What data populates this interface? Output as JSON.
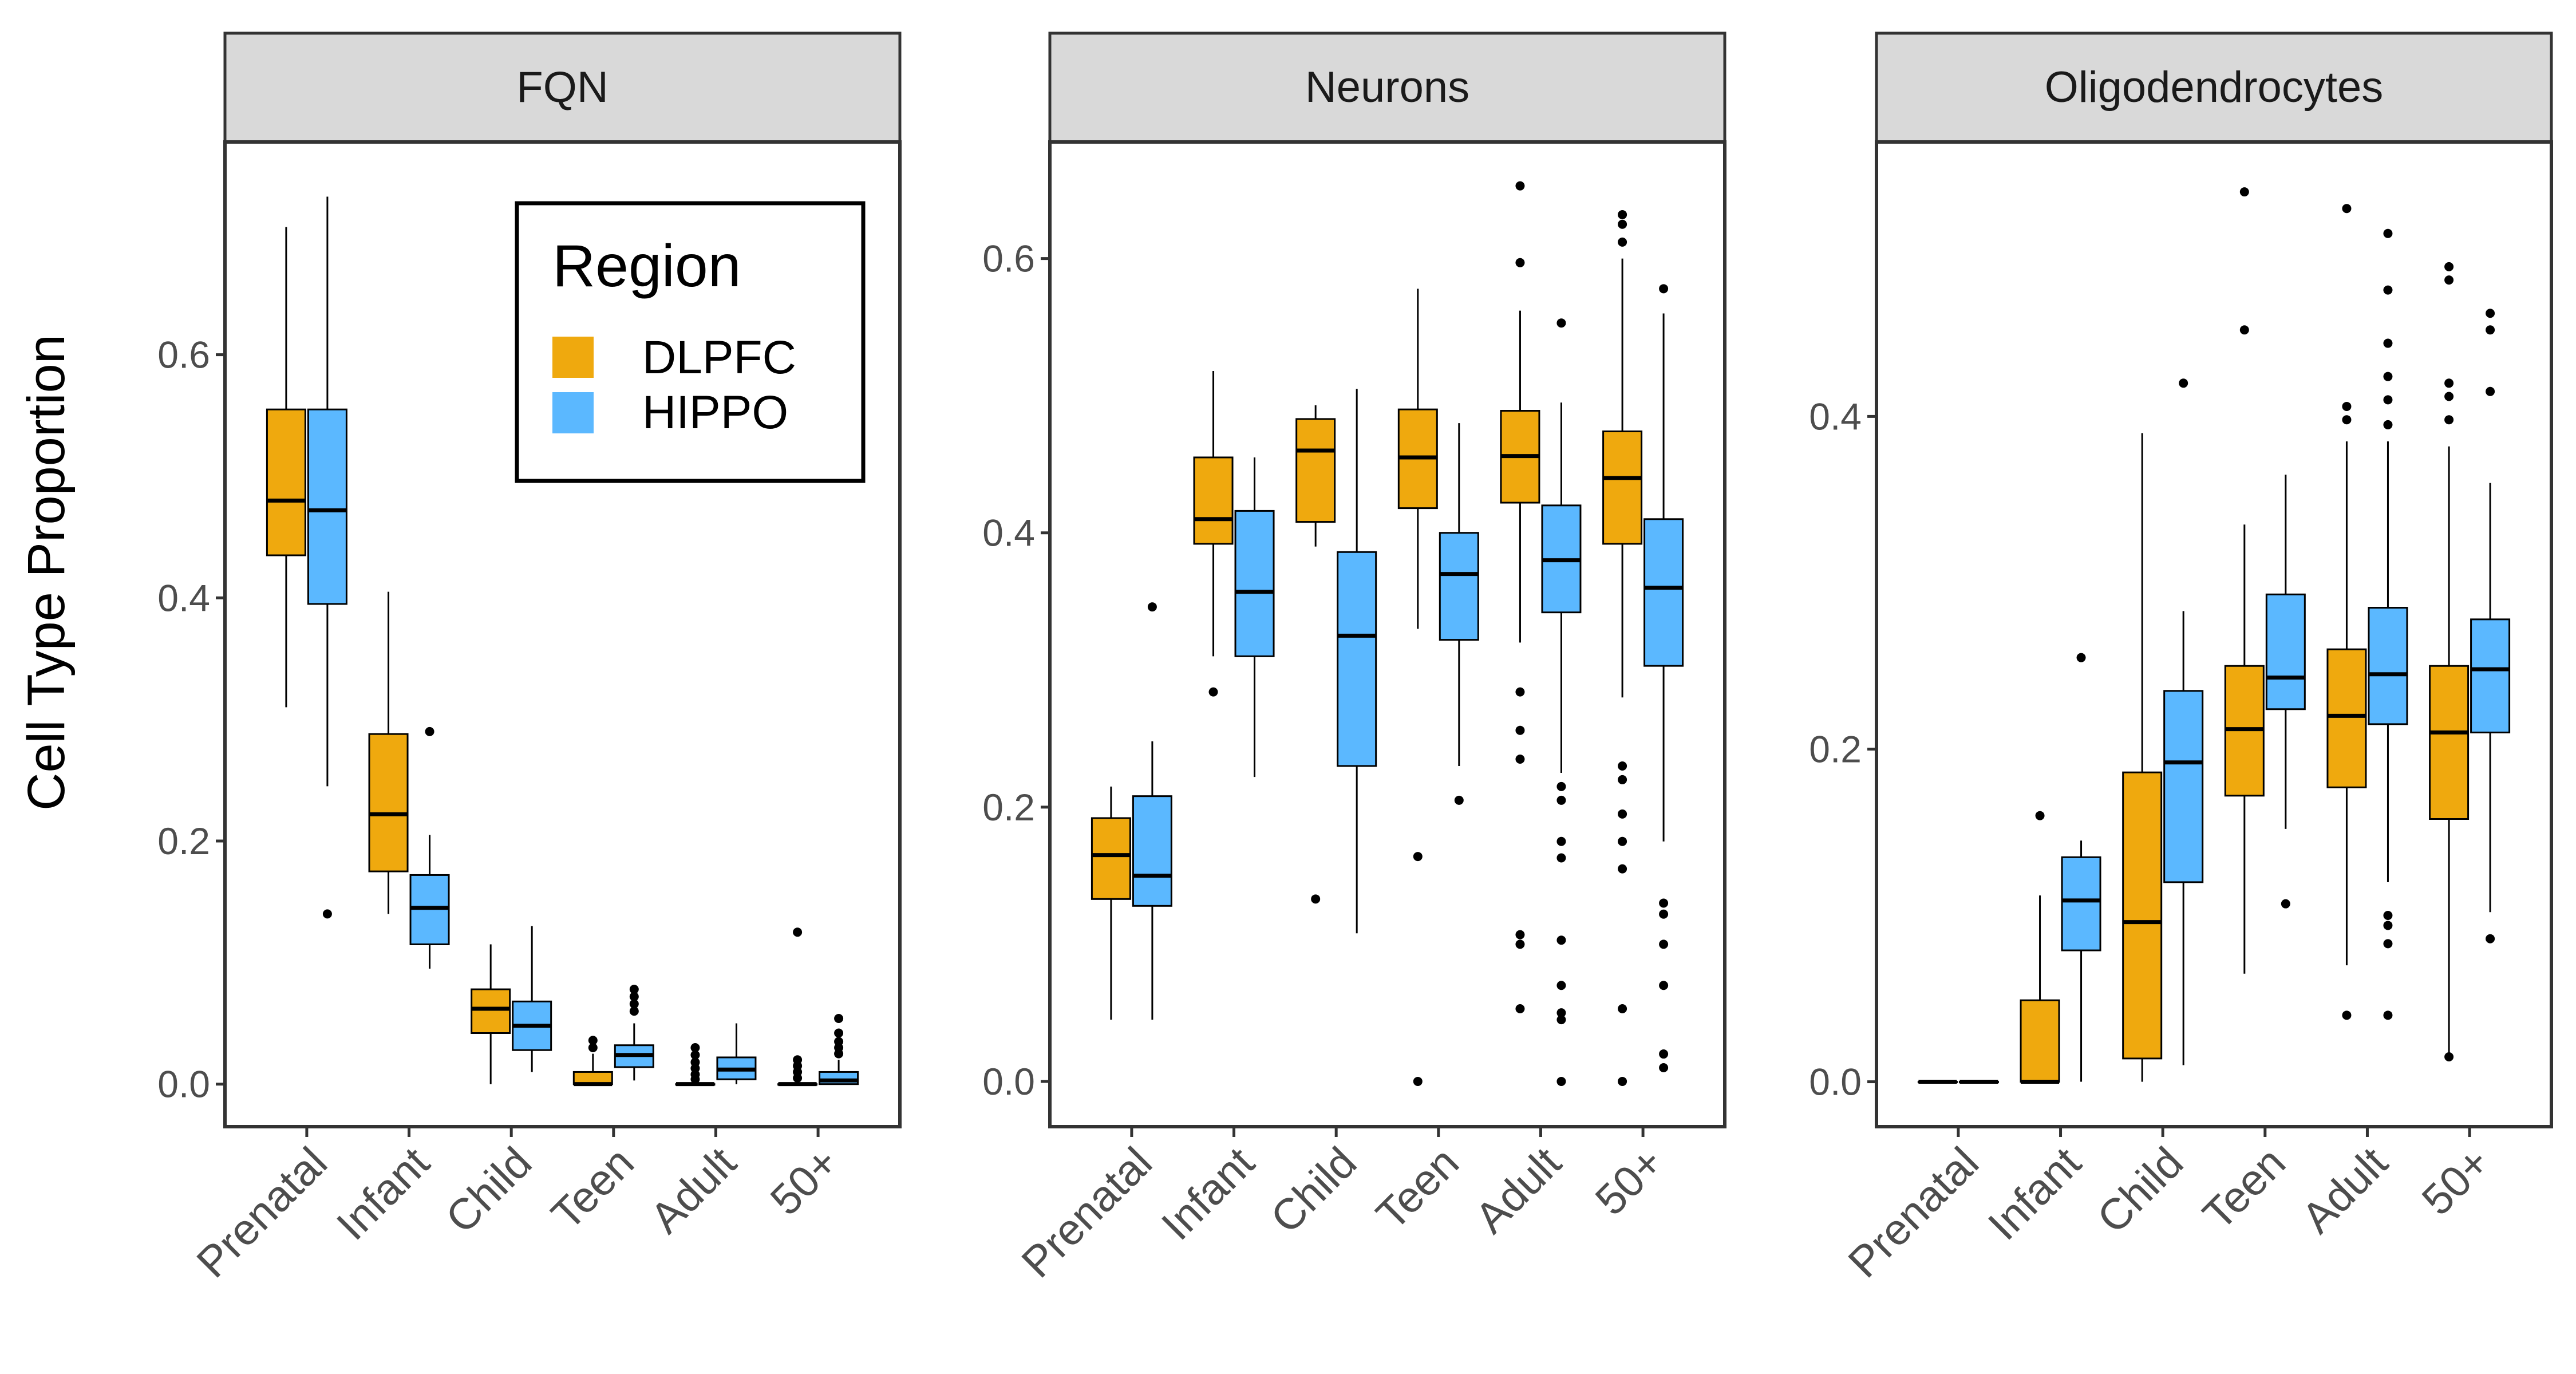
{
  "chart_data": {
    "type": "boxplot",
    "ylabel": "Cell Type Proportion",
    "categories": [
      "Prenatal",
      "Infant",
      "Child",
      "Teen",
      "Adult",
      "50+"
    ],
    "legend": {
      "title": "Region",
      "placement": "inside-top-right of first panel",
      "entries": [
        {
          "name": "DLPFC",
          "color": "#EFA90E"
        },
        {
          "name": "HIPPO",
          "color": "#5BB8FF"
        }
      ]
    },
    "grid": false,
    "panels": [
      {
        "title": "FQN",
        "ylim": [
          -0.035,
          0.775
        ],
        "yticks": [
          0.0,
          0.2,
          0.4,
          0.6
        ],
        "ytick_labels": [
          "0.0",
          "0.2",
          "0.4",
          "0.6"
        ],
        "series": [
          {
            "name": "DLPFC",
            "boxes": [
              {
                "category": "Prenatal",
                "whisker_low": 0.31,
                "q1": 0.435,
                "median": 0.48,
                "q3": 0.555,
                "whisker_high": 0.705,
                "outliers": []
              },
              {
                "category": "Infant",
                "whisker_low": 0.14,
                "q1": 0.175,
                "median": 0.222,
                "q3": 0.288,
                "whisker_high": 0.405,
                "outliers": []
              },
              {
                "category": "Child",
                "whisker_low": 0.0,
                "q1": 0.042,
                "median": 0.062,
                "q3": 0.078,
                "whisker_high": 0.115,
                "outliers": []
              },
              {
                "category": "Teen",
                "whisker_low": 0.0,
                "q1": 0.0,
                "median": 0.0,
                "q3": 0.01,
                "whisker_high": 0.025,
                "outliers": [
                  0.03,
                  0.036
                ]
              },
              {
                "category": "Adult",
                "whisker_low": 0.0,
                "q1": 0.0,
                "median": 0.0,
                "q3": 0.0,
                "whisker_high": 0.0,
                "outliers": [
                  0.004,
                  0.008,
                  0.013,
                  0.018,
                  0.024,
                  0.03
                ]
              },
              {
                "category": "50+",
                "whisker_low": 0.0,
                "q1": 0.0,
                "median": 0.0,
                "q3": 0.0,
                "whisker_high": 0.0,
                "outliers": [
                  0.005,
                  0.01,
                  0.015,
                  0.02,
                  0.125
                ]
              }
            ]
          },
          {
            "name": "HIPPO",
            "boxes": [
              {
                "category": "Prenatal",
                "whisker_low": 0.245,
                "q1": 0.395,
                "median": 0.472,
                "q3": 0.555,
                "whisker_high": 0.73,
                "outliers": [
                  0.14
                ]
              },
              {
                "category": "Infant",
                "whisker_low": 0.095,
                "q1": 0.115,
                "median": 0.145,
                "q3": 0.172,
                "whisker_high": 0.205,
                "outliers": [
                  0.29
                ]
              },
              {
                "category": "Child",
                "whisker_low": 0.01,
                "q1": 0.028,
                "median": 0.048,
                "q3": 0.068,
                "whisker_high": 0.13,
                "outliers": []
              },
              {
                "category": "Teen",
                "whisker_low": 0.003,
                "q1": 0.014,
                "median": 0.024,
                "q3": 0.032,
                "whisker_high": 0.05,
                "outliers": [
                  0.06,
                  0.066,
                  0.072,
                  0.078
                ]
              },
              {
                "category": "Adult",
                "whisker_low": 0.0,
                "q1": 0.004,
                "median": 0.012,
                "q3": 0.022,
                "whisker_high": 0.05,
                "outliers": []
              },
              {
                "category": "50+",
                "whisker_low": 0.0,
                "q1": 0.0,
                "median": 0.003,
                "q3": 0.01,
                "whisker_high": 0.02,
                "outliers": [
                  0.025,
                  0.03,
                  0.035,
                  0.042,
                  0.054
                ]
              }
            ]
          }
        ]
      },
      {
        "title": "Neurons",
        "ylim": [
          -0.033,
          0.685
        ],
        "yticks": [
          0.0,
          0.2,
          0.4,
          0.6
        ],
        "ytick_labels": [
          "0.0",
          "0.2",
          "0.4",
          "0.6"
        ],
        "series": [
          {
            "name": "DLPFC",
            "boxes": [
              {
                "category": "Prenatal",
                "whisker_low": 0.045,
                "q1": 0.133,
                "median": 0.165,
                "q3": 0.192,
                "whisker_high": 0.215,
                "outliers": []
              },
              {
                "category": "Infant",
                "whisker_low": 0.31,
                "q1": 0.392,
                "median": 0.41,
                "q3": 0.455,
                "whisker_high": 0.518,
                "outliers": [
                  0.284
                ]
              },
              {
                "category": "Child",
                "whisker_low": 0.39,
                "q1": 0.408,
                "median": 0.46,
                "q3": 0.483,
                "whisker_high": 0.493,
                "outliers": [
                  0.133
                ]
              },
              {
                "category": "Teen",
                "whisker_low": 0.33,
                "q1": 0.418,
                "median": 0.455,
                "q3": 0.49,
                "whisker_high": 0.578,
                "outliers": [
                  0.164,
                  0.0
                ]
              },
              {
                "category": "Adult",
                "whisker_low": 0.32,
                "q1": 0.422,
                "median": 0.456,
                "q3": 0.489,
                "whisker_high": 0.562,
                "outliers": [
                  0.653,
                  0.597,
                  0.284,
                  0.256,
                  0.235,
                  0.107,
                  0.1,
                  0.053
                ]
              },
              {
                "category": "50+",
                "whisker_low": 0.28,
                "q1": 0.392,
                "median": 0.44,
                "q3": 0.474,
                "whisker_high": 0.6,
                "outliers": [
                  0.632,
                  0.625,
                  0.612,
                  0.23,
                  0.22,
                  0.195,
                  0.175,
                  0.155,
                  0.053,
                  0.0
                ]
              }
            ]
          },
          {
            "name": "HIPPO",
            "boxes": [
              {
                "category": "Prenatal",
                "whisker_low": 0.045,
                "q1": 0.128,
                "median": 0.15,
                "q3": 0.208,
                "whisker_high": 0.248,
                "outliers": [
                  0.346
                ]
              },
              {
                "category": "Infant",
                "whisker_low": 0.222,
                "q1": 0.31,
                "median": 0.357,
                "q3": 0.416,
                "whisker_high": 0.455,
                "outliers": []
              },
              {
                "category": "Child",
                "whisker_low": 0.108,
                "q1": 0.23,
                "median": 0.325,
                "q3": 0.386,
                "whisker_high": 0.505,
                "outliers": []
              },
              {
                "category": "Teen",
                "whisker_low": 0.23,
                "q1": 0.322,
                "median": 0.37,
                "q3": 0.4,
                "whisker_high": 0.48,
                "outliers": [
                  0.205
                ]
              },
              {
                "category": "Adult",
                "whisker_low": 0.225,
                "q1": 0.342,
                "median": 0.38,
                "q3": 0.42,
                "whisker_high": 0.495,
                "outliers": [
                  0.553,
                  0.215,
                  0.205,
                  0.175,
                  0.163,
                  0.103,
                  0.07,
                  0.05,
                  0.045,
                  0.0
                ]
              },
              {
                "category": "50+",
                "whisker_low": 0.175,
                "q1": 0.303,
                "median": 0.36,
                "q3": 0.41,
                "whisker_high": 0.56,
                "outliers": [
                  0.578,
                  0.13,
                  0.122,
                  0.1,
                  0.07,
                  0.02,
                  0.01
                ]
              }
            ]
          }
        ]
      },
      {
        "title": "Oligodendrocytes",
        "ylim": [
          -0.027,
          0.565
        ],
        "yticks": [
          0.0,
          0.2,
          0.4
        ],
        "ytick_labels": [
          "0.0",
          "0.2",
          "0.4"
        ],
        "series": [
          {
            "name": "DLPFC",
            "boxes": [
              {
                "category": "Prenatal",
                "whisker_low": 0.0,
                "q1": 0.0,
                "median": 0.0,
                "q3": 0.0,
                "whisker_high": 0.0,
                "outliers": []
              },
              {
                "category": "Infant",
                "whisker_low": 0.0,
                "q1": 0.0,
                "median": 0.0,
                "q3": 0.049,
                "whisker_high": 0.112,
                "outliers": [
                  0.16
                ]
              },
              {
                "category": "Child",
                "whisker_low": 0.0,
                "q1": 0.014,
                "median": 0.096,
                "q3": 0.186,
                "whisker_high": 0.39,
                "outliers": []
              },
              {
                "category": "Teen",
                "whisker_low": 0.065,
                "q1": 0.172,
                "median": 0.212,
                "q3": 0.25,
                "whisker_high": 0.335,
                "outliers": [
                  0.535,
                  0.452
                ]
              },
              {
                "category": "Adult",
                "whisker_low": 0.07,
                "q1": 0.177,
                "median": 0.22,
                "q3": 0.26,
                "whisker_high": 0.385,
                "outliers": [
                  0.525,
                  0.406,
                  0.398,
                  0.04
                ]
              },
              {
                "category": "50+",
                "whisker_low": 0.015,
                "q1": 0.158,
                "median": 0.21,
                "q3": 0.25,
                "whisker_high": 0.382,
                "outliers": [
                  0.49,
                  0.482,
                  0.42,
                  0.412,
                  0.398,
                  0.015
                ]
              }
            ]
          },
          {
            "name": "HIPPO",
            "boxes": [
              {
                "category": "Prenatal",
                "whisker_low": 0.0,
                "q1": 0.0,
                "median": 0.0,
                "q3": 0.0,
                "whisker_high": 0.0,
                "outliers": []
              },
              {
                "category": "Infant",
                "whisker_low": 0.0,
                "q1": 0.079,
                "median": 0.109,
                "q3": 0.135,
                "whisker_high": 0.145,
                "outliers": [
                  0.255
                ]
              },
              {
                "category": "Child",
                "whisker_low": 0.01,
                "q1": 0.12,
                "median": 0.192,
                "q3": 0.235,
                "whisker_high": 0.283,
                "outliers": [
                  0.42
                ]
              },
              {
                "category": "Teen",
                "whisker_low": 0.152,
                "q1": 0.224,
                "median": 0.243,
                "q3": 0.293,
                "whisker_high": 0.365,
                "outliers": [
                  0.107
                ]
              },
              {
                "category": "Adult",
                "whisker_low": 0.12,
                "q1": 0.215,
                "median": 0.245,
                "q3": 0.285,
                "whisker_high": 0.385,
                "outliers": [
                  0.51,
                  0.476,
                  0.444,
                  0.424,
                  0.41,
                  0.395,
                  0.1,
                  0.094,
                  0.083,
                  0.04
                ]
              },
              {
                "category": "50+",
                "whisker_low": 0.102,
                "q1": 0.21,
                "median": 0.248,
                "q3": 0.278,
                "whisker_high": 0.36,
                "outliers": [
                  0.462,
                  0.452,
                  0.415,
                  0.086
                ]
              }
            ]
          }
        ]
      }
    ]
  }
}
